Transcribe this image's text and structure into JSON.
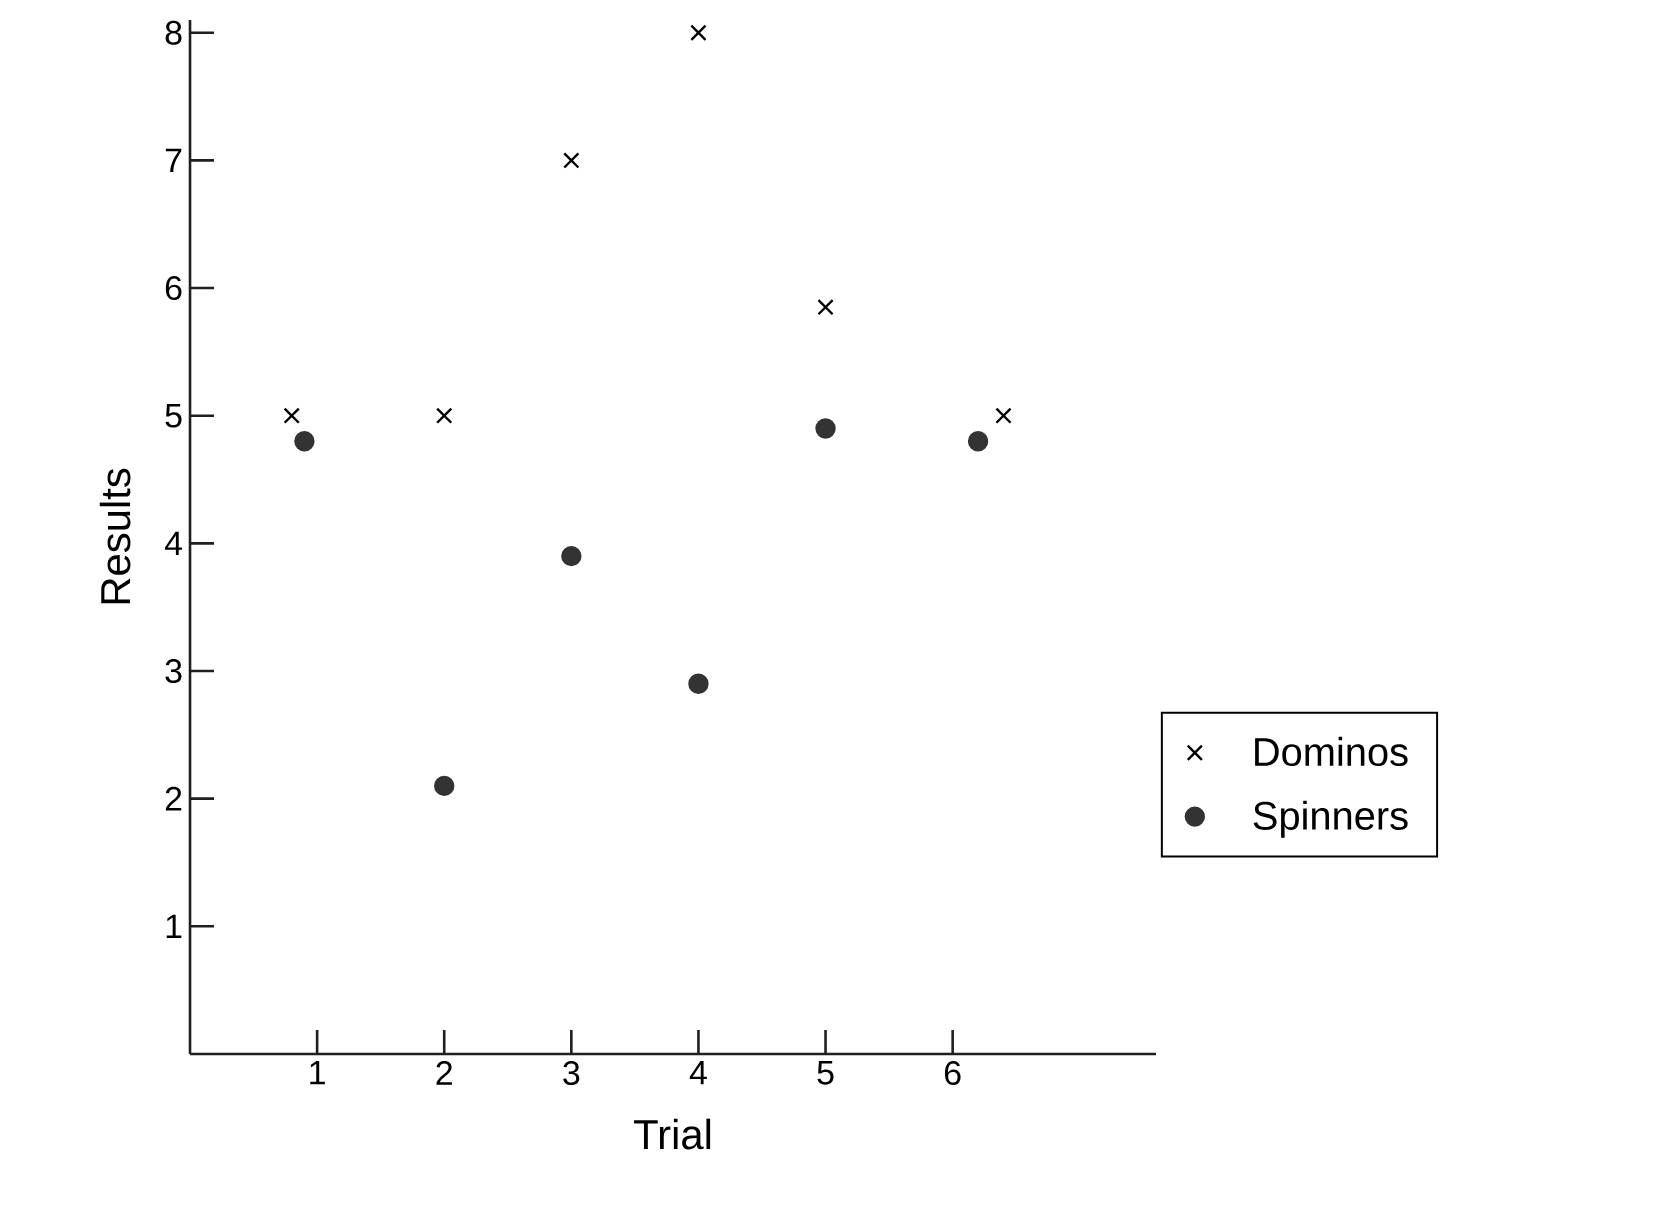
{
  "chart_data": {
    "type": "scatter",
    "xlabel": "Trial",
    "ylabel": "Results",
    "xlim": [
      0,
      7.6
    ],
    "ylim": [
      0,
      8.1
    ],
    "xticks": [
      1,
      2,
      3,
      4,
      5,
      6
    ],
    "yticks": [
      1,
      2,
      3,
      4,
      5,
      6,
      7,
      8
    ],
    "legend": "right",
    "series": [
      {
        "name": "Dominos",
        "color": "#000000",
        "marker": "cross",
        "x": [
          0.8,
          2,
          3,
          4,
          5,
          6.4
        ],
        "values": [
          5,
          5,
          7,
          8,
          5.85,
          5
        ]
      },
      {
        "name": "Spinners",
        "color": "#333333",
        "marker": "circle",
        "x": [
          0.9,
          2,
          3,
          4,
          5,
          6.2
        ],
        "values": [
          4.8,
          2.1,
          3.9,
          2.9,
          4.9,
          4.8
        ]
      }
    ]
  }
}
